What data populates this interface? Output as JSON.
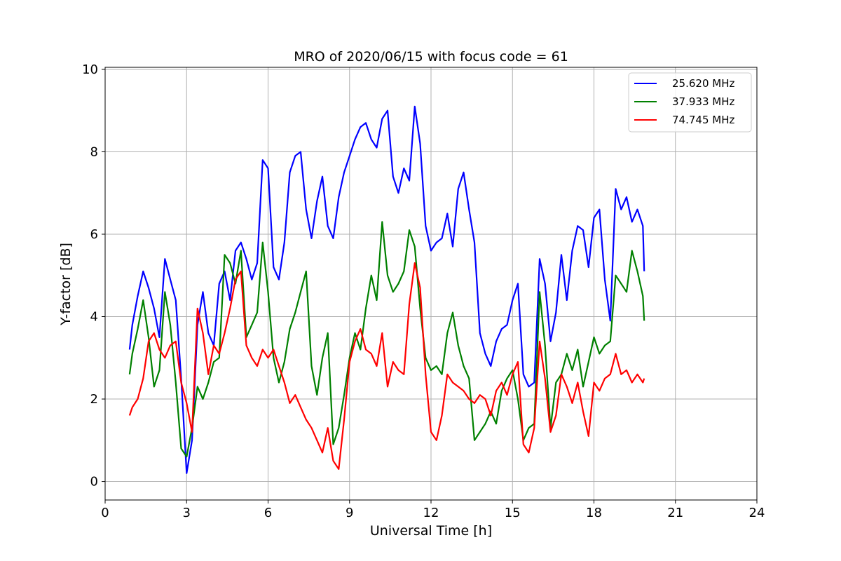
{
  "chart_data": {
    "type": "line",
    "title": "MRO of 2020/06/15 with focus code = 61",
    "xlabel": "Universal Time [h]",
    "ylabel": "Y-factor [dB]",
    "xlim": [
      0,
      24
    ],
    "ylim": [
      -0.45,
      10.05
    ],
    "xticks": [
      0,
      3,
      6,
      9,
      12,
      15,
      18,
      21,
      24
    ],
    "yticks": [
      0,
      2,
      4,
      6,
      8,
      10
    ],
    "grid": true,
    "legend_position": "top-right",
    "series": [
      {
        "name": "25.620 MHz",
        "color": "#0000ff",
        "x": [
          0.9,
          1.0,
          1.2,
          1.4,
          1.6,
          1.8,
          2.0,
          2.2,
          2.4,
          2.6,
          2.8,
          3.0,
          3.2,
          3.4,
          3.6,
          3.8,
          4.0,
          4.2,
          4.4,
          4.6,
          4.8,
          5.0,
          5.2,
          5.4,
          5.6,
          5.8,
          6.0,
          6.2,
          6.4,
          6.6,
          6.8,
          7.0,
          7.2,
          7.4,
          7.6,
          7.8,
          8.0,
          8.2,
          8.4,
          8.6,
          8.8,
          9.0,
          9.2,
          9.4,
          9.6,
          9.8,
          10.0,
          10.2,
          10.4,
          10.6,
          10.8,
          11.0,
          11.2,
          11.4,
          11.6,
          11.8,
          12.0,
          12.2,
          12.4,
          12.6,
          12.8,
          13.0,
          13.2,
          13.4,
          13.6,
          13.8,
          14.0,
          14.2,
          14.4,
          14.6,
          14.8,
          15.0,
          15.2,
          15.4,
          15.6,
          15.8,
          16.0,
          16.2,
          16.4,
          16.6,
          16.8,
          17.0,
          17.2,
          17.4,
          17.6,
          17.8,
          18.0,
          18.2,
          18.4,
          18.6,
          18.8,
          19.0,
          19.2,
          19.4,
          19.6,
          19.8,
          19.85
        ],
        "values": [
          3.2,
          3.8,
          4.5,
          5.1,
          4.7,
          4.2,
          3.5,
          5.4,
          4.9,
          4.4,
          2.5,
          0.2,
          1.0,
          3.8,
          4.6,
          3.6,
          3.3,
          4.8,
          5.1,
          4.4,
          5.6,
          5.8,
          5.4,
          4.9,
          5.3,
          7.8,
          7.6,
          5.2,
          4.9,
          5.8,
          7.5,
          7.9,
          8.0,
          6.6,
          5.9,
          6.8,
          7.4,
          6.2,
          5.9,
          6.9,
          7.5,
          7.9,
          8.3,
          8.6,
          8.7,
          8.3,
          8.1,
          8.8,
          9.0,
          7.4,
          7.0,
          7.6,
          7.3,
          9.1,
          8.2,
          6.2,
          5.6,
          5.8,
          5.9,
          6.5,
          5.7,
          7.1,
          7.5,
          6.6,
          5.8,
          3.6,
          3.1,
          2.8,
          3.4,
          3.7,
          3.8,
          4.4,
          4.8,
          2.6,
          2.3,
          2.4,
          5.4,
          4.8,
          3.4,
          4.1,
          5.5,
          4.4,
          5.6,
          6.2,
          6.1,
          5.2,
          6.4,
          6.6,
          4.9,
          3.9,
          7.1,
          6.6,
          6.9,
          6.3,
          6.6,
          6.2,
          5.1
        ]
      },
      {
        "name": "37.933 MHz",
        "color": "#008000",
        "x": [
          0.9,
          1.0,
          1.2,
          1.4,
          1.6,
          1.8,
          2.0,
          2.2,
          2.4,
          2.6,
          2.8,
          3.0,
          3.2,
          3.4,
          3.6,
          3.8,
          4.0,
          4.2,
          4.4,
          4.6,
          4.8,
          5.0,
          5.2,
          5.4,
          5.6,
          5.8,
          6.0,
          6.2,
          6.4,
          6.6,
          6.8,
          7.0,
          7.2,
          7.4,
          7.6,
          7.8,
          8.0,
          8.2,
          8.4,
          8.6,
          8.8,
          9.0,
          9.2,
          9.4,
          9.6,
          9.8,
          10.0,
          10.2,
          10.4,
          10.6,
          10.8,
          11.0,
          11.2,
          11.4,
          11.6,
          11.8,
          12.0,
          12.2,
          12.4,
          12.6,
          12.8,
          13.0,
          13.2,
          13.4,
          13.6,
          13.8,
          14.0,
          14.2,
          14.4,
          14.6,
          14.8,
          15.0,
          15.2,
          15.4,
          15.6,
          15.8,
          16.0,
          16.2,
          16.4,
          16.6,
          16.8,
          17.0,
          17.2,
          17.4,
          17.6,
          17.8,
          18.0,
          18.2,
          18.4,
          18.6,
          18.8,
          19.0,
          19.2,
          19.4,
          19.6,
          19.8,
          19.85
        ],
        "values": [
          2.6,
          3.1,
          3.7,
          4.4,
          3.5,
          2.3,
          2.7,
          4.6,
          3.8,
          2.4,
          0.8,
          0.6,
          1.3,
          2.3,
          2.0,
          2.4,
          2.9,
          3.0,
          5.5,
          5.3,
          4.8,
          5.6,
          3.5,
          3.8,
          4.1,
          5.8,
          4.6,
          3.0,
          2.4,
          2.9,
          3.7,
          4.1,
          4.6,
          5.1,
          2.8,
          2.1,
          3.0,
          3.6,
          0.9,
          1.3,
          2.1,
          3.0,
          3.6,
          3.2,
          4.2,
          5.0,
          4.4,
          6.3,
          5.0,
          4.6,
          4.8,
          5.1,
          6.1,
          5.7,
          4.2,
          3.0,
          2.7,
          2.8,
          2.6,
          3.6,
          4.1,
          3.3,
          2.8,
          2.5,
          1.0,
          1.2,
          1.4,
          1.7,
          1.4,
          2.2,
          2.5,
          2.7,
          2.0,
          1.0,
          1.3,
          1.4,
          4.6,
          3.3,
          1.3,
          2.4,
          2.6,
          3.1,
          2.7,
          3.2,
          2.3,
          2.9,
          3.5,
          3.1,
          3.3,
          3.4,
          5.0,
          4.8,
          4.6,
          5.6,
          5.1,
          4.5,
          3.9
        ]
      },
      {
        "name": "74.745 MHz",
        "color": "#ff0000",
        "x": [
          0.9,
          1.0,
          1.2,
          1.4,
          1.6,
          1.8,
          2.0,
          2.2,
          2.4,
          2.6,
          2.8,
          3.0,
          3.2,
          3.4,
          3.6,
          3.8,
          4.0,
          4.2,
          4.4,
          4.6,
          4.8,
          5.0,
          5.2,
          5.4,
          5.6,
          5.8,
          6.0,
          6.2,
          6.4,
          6.6,
          6.8,
          7.0,
          7.2,
          7.4,
          7.6,
          7.8,
          8.0,
          8.2,
          8.4,
          8.6,
          8.8,
          9.0,
          9.2,
          9.4,
          9.6,
          9.8,
          10.0,
          10.2,
          10.4,
          10.6,
          10.8,
          11.0,
          11.2,
          11.4,
          11.6,
          11.8,
          12.0,
          12.2,
          12.4,
          12.6,
          12.8,
          13.0,
          13.2,
          13.4,
          13.6,
          13.8,
          14.0,
          14.2,
          14.4,
          14.6,
          14.8,
          15.0,
          15.2,
          15.4,
          15.6,
          15.8,
          16.0,
          16.2,
          16.4,
          16.6,
          16.8,
          17.0,
          17.2,
          17.4,
          17.6,
          17.8,
          18.0,
          18.2,
          18.4,
          18.6,
          18.8,
          19.0,
          19.2,
          19.4,
          19.6,
          19.8,
          19.85
        ],
        "values": [
          1.6,
          1.8,
          2.0,
          2.5,
          3.4,
          3.6,
          3.2,
          3.0,
          3.3,
          3.4,
          2.4,
          1.9,
          1.2,
          4.2,
          3.6,
          2.6,
          3.3,
          3.1,
          3.6,
          4.2,
          4.9,
          5.1,
          3.3,
          3.0,
          2.8,
          3.2,
          3.0,
          3.2,
          2.8,
          2.4,
          1.9,
          2.1,
          1.8,
          1.5,
          1.3,
          1.0,
          0.7,
          1.3,
          0.5,
          0.3,
          1.5,
          2.9,
          3.4,
          3.7,
          3.2,
          3.1,
          2.8,
          3.6,
          2.3,
          2.9,
          2.7,
          2.6,
          4.3,
          5.3,
          4.7,
          2.6,
          1.2,
          1.0,
          1.6,
          2.6,
          2.4,
          2.3,
          2.2,
          2.0,
          1.9,
          2.1,
          2.0,
          1.6,
          2.2,
          2.4,
          2.1,
          2.6,
          2.9,
          0.9,
          0.7,
          1.3,
          3.4,
          2.5,
          1.2,
          1.6,
          2.6,
          2.3,
          1.9,
          2.4,
          1.7,
          1.1,
          2.4,
          2.2,
          2.5,
          2.6,
          3.1,
          2.6,
          2.7,
          2.4,
          2.6,
          2.4,
          2.5
        ]
      }
    ]
  }
}
